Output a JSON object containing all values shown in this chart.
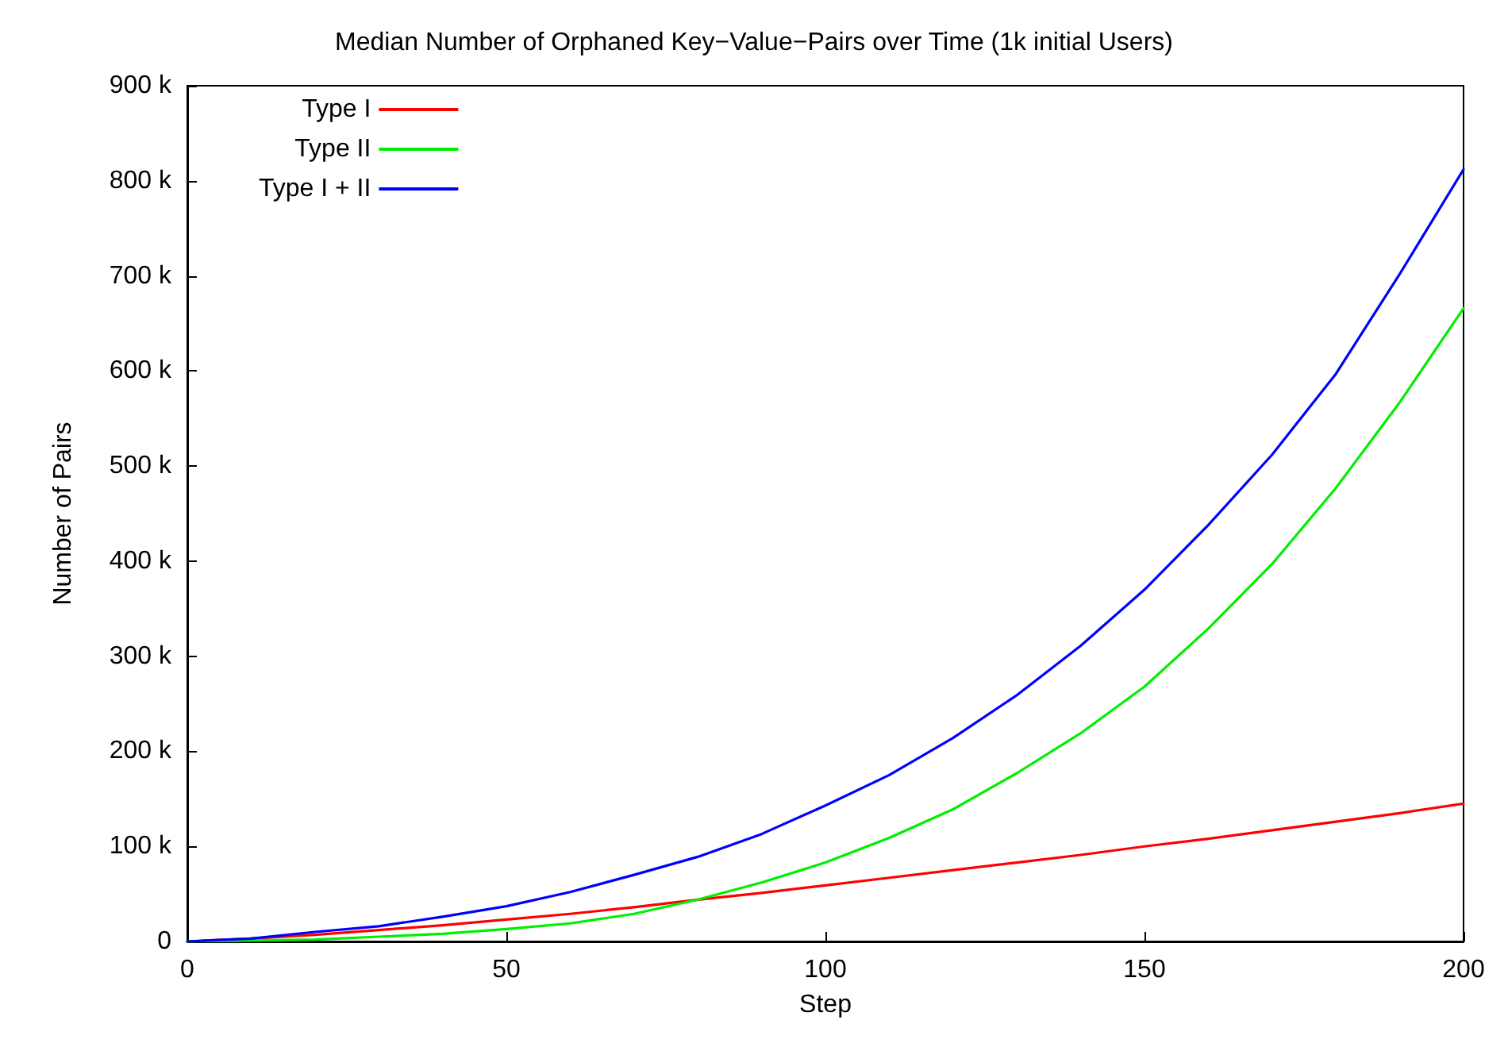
{
  "chart_data": {
    "type": "line",
    "title": "Median Number of Orphaned Key−Value−Pairs over Time (1k initial Users)",
    "xlabel": "Step",
    "ylabel": "Number of Pairs",
    "x": [
      0,
      10,
      20,
      30,
      40,
      50,
      60,
      70,
      80,
      90,
      100,
      110,
      120,
      130,
      140,
      150,
      160,
      170,
      180,
      190,
      200
    ],
    "series": [
      {
        "name": "Type I",
        "color": "#ff0000",
        "values": [
          0,
          3000,
          7000,
          12000,
          17000,
          23000,
          29000,
          36000,
          44000,
          51000,
          59000,
          67000,
          75000,
          83000,
          91000,
          100000,
          108000,
          117000,
          126000,
          135000,
          145000
        ]
      },
      {
        "name": "Type II",
        "color": "#00ee00",
        "values": [
          0,
          1000,
          2000,
          5000,
          8000,
          13000,
          19000,
          29000,
          44000,
          62000,
          83000,
          109000,
          139000,
          177000,
          219000,
          268000,
          329000,
          397000,
          477000,
          567000,
          666000
        ]
      },
      {
        "name": "Type I + II",
        "color": "#0000ff",
        "values": [
          0,
          3000,
          10000,
          16000,
          26000,
          37000,
          52000,
          70000,
          89000,
          113000,
          143000,
          175000,
          214000,
          259000,
          311000,
          370000,
          438000,
          512000,
          597000,
          702000,
          812000
        ]
      }
    ],
    "xlim": [
      0,
      200
    ],
    "xticks": [
      0,
      50,
      100,
      150,
      200
    ],
    "ylim": [
      0,
      900000
    ],
    "yticks": [
      {
        "value": 0,
        "label": "0"
      },
      {
        "value": 100000,
        "label": "100 k"
      },
      {
        "value": 200000,
        "label": "200 k"
      },
      {
        "value": 300000,
        "label": "300 k"
      },
      {
        "value": 400000,
        "label": "400 k"
      },
      {
        "value": 500000,
        "label": "500 k"
      },
      {
        "value": 600000,
        "label": "600 k"
      },
      {
        "value": 700000,
        "label": "700 k"
      },
      {
        "value": 800000,
        "label": "800 k"
      },
      {
        "value": 900000,
        "label": "900 k"
      }
    ],
    "legend": "top left",
    "grid": false,
    "marker": "none",
    "line_style": "solid"
  }
}
